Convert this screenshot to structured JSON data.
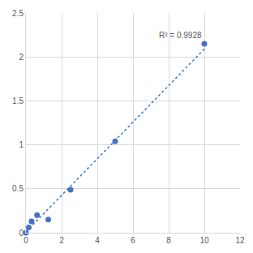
{
  "chart_data": {
    "type": "scatter",
    "x": [
      0,
      0.156,
      0.3125,
      0.625,
      1.25,
      2.5,
      5,
      10
    ],
    "series": [
      {
        "type": "scatter",
        "values": [
          0,
          0.06,
          0.13,
          0.2,
          0.15,
          0.49,
          1.04,
          2.15
        ],
        "color": "#4472c4",
        "marker": "circle"
      },
      {
        "type": "line",
        "x": [
          0,
          10
        ],
        "values": [
          0.01,
          2.09
        ],
        "color": "#4472c4",
        "line_style": "dotted"
      }
    ],
    "annotations": [
      "R² = 0.9928"
    ],
    "xlim": [
      0,
      12
    ],
    "xticks": [
      0,
      2,
      4,
      6,
      8,
      10,
      12
    ],
    "ylim": [
      0,
      2.5
    ],
    "yticks": [
      0,
      0.5,
      1,
      1.5,
      2,
      2.5
    ],
    "grid": true
  }
}
